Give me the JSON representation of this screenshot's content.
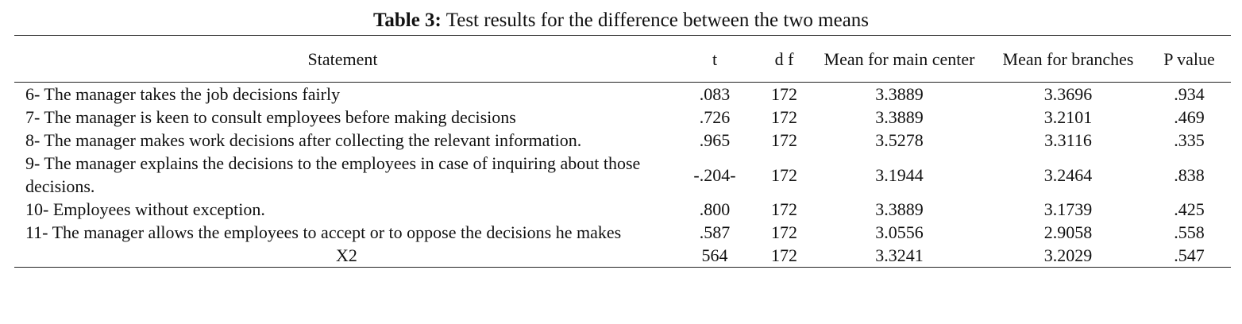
{
  "title": {
    "label": "Table 3:",
    "text": "Test results for the difference between the two means"
  },
  "table": {
    "headers": [
      "Statement",
      "t",
      "d f",
      "Mean for main center",
      "Mean for branches",
      "P value"
    ],
    "rows": [
      [
        "6- The manager takes the job decisions fairly",
        ".083",
        "172",
        "3.3889",
        "3.3696",
        ".934"
      ],
      [
        "7- The manager is keen to consult employees before making decisions",
        ".726",
        "172",
        "3.3889",
        "3.2101",
        ".469"
      ],
      [
        "8- The manager makes work decisions after collecting the relevant information.",
        ".965",
        "172",
        "3.5278",
        "3.3116",
        ".335"
      ],
      [
        "9- The manager explains the decisions to the employees in case of inquiring about those decisions.",
        "-.204-",
        "172",
        "3.1944",
        "3.2464",
        ".838"
      ],
      [
        "10- Employees without exception.",
        ".800",
        "172",
        "3.3889",
        "3.1739",
        ".425"
      ],
      [
        "11- The manager allows the employees to accept or to oppose the decisions he makes",
        ".587",
        "172",
        "3.0556",
        "2.9058",
        ".558"
      ],
      [
        "X2",
        "564",
        "172",
        "3.3241",
        "3.2029",
        ".547"
      ]
    ]
  }
}
